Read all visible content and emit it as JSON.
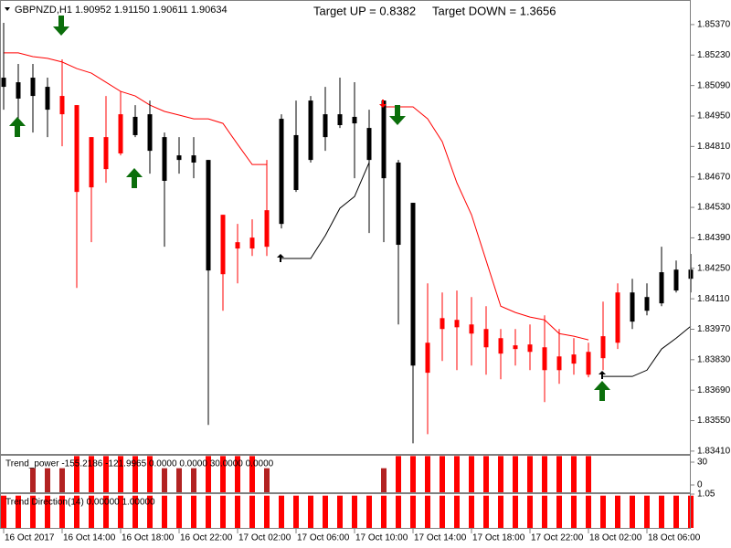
{
  "chart_data": [
    {
      "type": "candlestick",
      "title": "GBPNZD,H1  1.90952 1.91150 1.90611 1.90634",
      "annotations": [
        {
          "text": "Target UP = 0.8382",
          "color": "#000000"
        },
        {
          "text": "Target DOWN = 1.3656",
          "color": "#ff0000"
        }
      ],
      "categories": [
        "16 Oct 2017",
        null,
        null,
        null,
        "16 Oct 14:00",
        null,
        null,
        null,
        "16 Oct 18:00",
        null,
        null,
        null,
        "16 Oct 22:00",
        null,
        null,
        null,
        "17 Oct 02:00",
        null,
        null,
        null,
        "17 Oct 06:00",
        null,
        null,
        null,
        "17 Oct 10:00",
        null,
        null,
        null,
        "17 Oct 14:00",
        null,
        null,
        null,
        "17 Oct 18:00",
        null,
        null,
        null,
        "17 Oct 22:00",
        null,
        null,
        null,
        "18 Oct 02:00",
        null,
        null,
        null,
        "18 Oct 06:00",
        null,
        null,
        null
      ],
      "open": [
        1.85084,
        1.8503,
        1.85042,
        1.84979,
        1.85042,
        1.85,
        1.84853,
        1.84853,
        1.84958,
        1.84862,
        1.8479,
        1.84652,
        1.84748,
        1.84736,
        1.8424,
        1.84496,
        1.8437,
        1.84391,
        1.84517,
        1.84454,
        1.8461,
        1.84748,
        1.84853,
        1.84908,
        1.84916,
        1.84748,
        1.84664,
        1.84358,
        1.83803,
        1.83908,
        1.84021,
        1.84013,
        1.83992,
        1.83971,
        1.83929,
        1.83896,
        1.839,
        1.83887,
        1.83845,
        1.83854,
        1.83866,
        1.83938,
        1.84139,
        1.84005,
        1.84055,
        1.84089,
        1.84148,
        1.84202
      ],
      "high": [
        1.85378,
        1.85189,
        1.85189,
        1.85126,
        1.8521,
        1.85,
        1.84853,
        1.85042,
        1.85063,
        1.85,
        1.85021,
        1.84874,
        1.84853,
        1.84853,
        1.84748,
        1.84496,
        1.84454,
        1.84475,
        1.84748,
        1.84958,
        1.85021,
        1.85042,
        1.85084,
        1.85126,
        1.85105,
        1.84979,
        1.85021,
        1.84748,
        1.84551,
        1.84181,
        1.84139,
        1.84148,
        1.84118,
        1.84076,
        1.83971,
        1.83971,
        1.83992,
        1.84034,
        1.83971,
        1.83929,
        1.83908,
        1.84097,
        1.84181,
        1.84202,
        1.84181,
        1.84349,
        1.84286,
        1.84316
      ],
      "low": [
        1.84979,
        1.84874,
        1.84874,
        1.84853,
        1.84811,
        1.8416,
        1.8437,
        1.84643,
        1.84769,
        1.84853,
        1.84685,
        1.84349,
        1.84685,
        1.84664,
        1.8353,
        1.84055,
        1.84181,
        1.84307,
        1.84307,
        1.84433,
        1.84601,
        1.84736,
        1.8479,
        1.84895,
        1.84664,
        1.84412,
        1.8437,
        1.83992,
        1.83446,
        1.83488,
        1.83824,
        1.83782,
        1.83803,
        1.83761,
        1.8374,
        1.83803,
        1.83782,
        1.83635,
        1.83719,
        1.83761,
        1.83749,
        1.83782,
        1.83879,
        1.83971,
        1.84034,
        1.84076,
        1.84139,
        1.84139
      ],
      "close": [
        1.85126,
        1.85105,
        1.85126,
        1.85084,
        1.84958,
        1.84601,
        1.84622,
        1.84706,
        1.84778,
        1.84946,
        1.84958,
        1.84853,
        1.84769,
        1.84769,
        1.84748,
        1.84223,
        1.84341,
        1.84341,
        1.84349,
        1.84937,
        1.84862,
        1.85021,
        1.84958,
        1.84958,
        1.84946,
        1.84895,
        1.85021,
        1.84736,
        1.84551,
        1.8377,
        1.83971,
        1.83979,
        1.8395,
        1.83887,
        1.83858,
        1.83879,
        1.83866,
        1.83782,
        1.83782,
        1.83812,
        1.83761,
        1.83837,
        1.83908,
        1.84139,
        1.84118,
        1.84232,
        1.84244,
        1.84244
      ],
      "up_color": "#000000",
      "down_color": "#ff0000",
      "series": [
        {
          "color": "#ff0000",
          "values": [
            1.8524,
            1.8524,
            1.85223,
            1.85215,
            1.85198,
            1.85168,
            1.85147,
            1.85105,
            1.85063,
            1.85042,
            1.85,
            1.84971,
            1.84954,
            1.84937,
            1.84937,
            1.84916,
            1.8482,
            1.84727,
            1.84727,
            null,
            null,
            null,
            null,
            null,
            null,
            null,
            1.84992,
            1.84992,
            1.84992,
            1.84937,
            1.84832,
            1.84643,
            1.84496,
            1.84286,
            1.84076,
            1.84047,
            1.84026,
            1.84013,
            1.8395,
            1.83938,
            1.83921,
            null,
            null,
            null,
            null,
            null,
            null,
            null
          ]
        },
        {
          "color": "#000000",
          "values": [
            null,
            null,
            null,
            null,
            null,
            null,
            null,
            null,
            null,
            null,
            null,
            null,
            null,
            null,
            null,
            null,
            null,
            null,
            null,
            1.84295,
            1.84295,
            1.84295,
            1.844,
            1.84526,
            1.8458,
            1.84736,
            null,
            null,
            null,
            null,
            null,
            null,
            null,
            null,
            null,
            null,
            null,
            null,
            null,
            null,
            null,
            1.83753,
            1.83753,
            1.83753,
            1.83782,
            1.83879,
            1.83929,
            1.83984
          ]
        }
      ],
      "ylim": [
        1.83397,
        1.85483
      ],
      "yticks": [
        {
          "value": 1.8537,
          "label": "1.85370"
        },
        {
          "value": 1.8523,
          "label": "1.85230"
        },
        {
          "value": 1.8509,
          "label": "1.85090"
        },
        {
          "value": 1.8495,
          "label": "1.84950"
        },
        {
          "value": 1.8481,
          "label": "1.84810"
        },
        {
          "value": 1.8467,
          "label": "1.84670"
        },
        {
          "value": 1.8453,
          "label": "1.84530"
        },
        {
          "value": 1.8439,
          "label": "1.84390"
        },
        {
          "value": 1.8425,
          "label": "1.84250"
        },
        {
          "value": 1.8411,
          "label": "1.84110"
        },
        {
          "value": 1.8397,
          "label": "1.83970"
        },
        {
          "value": 1.8383,
          "label": "1.83830"
        },
        {
          "value": 1.8369,
          "label": "1.83690"
        },
        {
          "value": 1.8355,
          "label": "1.83550"
        },
        {
          "value": 1.8341,
          "label": "1.83410"
        }
      ],
      "grid": false
    },
    {
      "type": "bar",
      "title": "Trend_power -155.2186 -121.9965 0.0000 0.0000 30.0000 0.0000",
      "series": [
        {
          "color": "#b22222",
          "values": [
            null,
            null,
            22,
            22,
            22,
            null,
            null,
            null,
            null,
            null,
            null,
            22,
            22,
            22,
            null,
            null,
            null,
            null,
            22,
            null,
            null,
            null,
            null,
            null,
            null,
            null,
            22,
            null,
            null,
            null,
            null,
            null,
            null,
            null,
            null,
            null,
            null,
            null,
            null,
            null,
            null,
            null,
            null,
            null,
            null,
            null,
            null,
            null
          ]
        },
        {
          "color": "#ff0000",
          "values": [
            null,
            null,
            null,
            null,
            null,
            38,
            38,
            38,
            38,
            38,
            38,
            null,
            null,
            null,
            38,
            38,
            38,
            38,
            null,
            null,
            null,
            null,
            null,
            null,
            null,
            null,
            null,
            38,
            38,
            38,
            38,
            38,
            38,
            38,
            38,
            38,
            38,
            38,
            38,
            38,
            38,
            null,
            null,
            null,
            null,
            null,
            null,
            null
          ]
        }
      ],
      "ylim": [
        -9.6,
        38.4
      ],
      "yticks": [
        30,
        0
      ]
    },
    {
      "type": "bar",
      "title": "Trend Direction(14) 0.00000 1.00000",
      "series": [
        {
          "color": "#ff0000",
          "values": [
            1,
            1,
            1,
            1,
            1,
            1,
            1,
            1,
            1,
            1,
            1,
            1,
            1,
            1,
            1,
            1,
            1,
            1,
            1,
            1,
            1,
            1,
            1,
            1,
            1,
            1,
            1,
            1,
            1,
            1,
            1,
            1,
            1,
            1,
            1,
            1,
            1,
            1,
            1,
            1,
            1,
            1,
            1,
            1,
            1,
            1,
            1,
            1
          ]
        }
      ],
      "ylim": [
        -0.05,
        1.05
      ],
      "yticks": [
        1.05
      ]
    }
  ]
}
